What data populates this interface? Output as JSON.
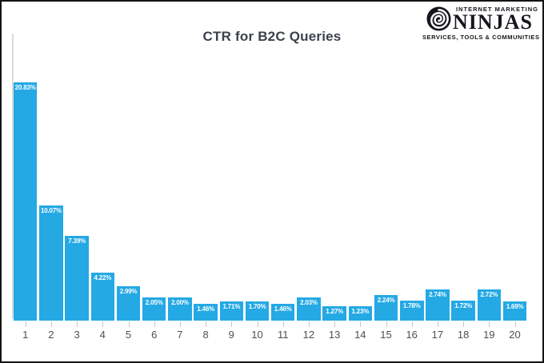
{
  "window": {
    "border_color": "#141414",
    "background": "#ffffff"
  },
  "logo": {
    "line1": "INTERNET MARKETING",
    "name": "NINJAS",
    "line2": "SERVICES, TOOLS & COMMUNITIES",
    "color": "#15151d",
    "icon": "spiral-icon"
  },
  "chart_data": {
    "type": "bar",
    "title": "CTR for B2C Queries",
    "categories": [
      "1",
      "2",
      "3",
      "4",
      "5",
      "6",
      "7",
      "8",
      "9",
      "10",
      "11",
      "12",
      "13",
      "14",
      "15",
      "16",
      "17",
      "18",
      "19",
      "20"
    ],
    "values": [
      20.83,
      10.07,
      7.39,
      4.22,
      2.99,
      2.05,
      2.0,
      1.46,
      1.71,
      1.7,
      1.46,
      2.03,
      1.27,
      1.23,
      2.24,
      1.78,
      2.74,
      1.72,
      2.72,
      1.69
    ],
    "value_labels": [
      "20.83%",
      "10.07%",
      "7.39%",
      "4.22%",
      "2.99%",
      "2.05%",
      "2.00%",
      "1.46%",
      "1.71%",
      "1.70%",
      "1.46%",
      "2.03%",
      "1.27%",
      "1.23%",
      "2.24%",
      "1.78%",
      "2.74%",
      "1.72%",
      "2.72%",
      "1.69%"
    ],
    "xlabel": "",
    "ylabel": "",
    "ylim": [
      0,
      22
    ],
    "grid": false,
    "legend": false,
    "bar_color": "#24a9e4",
    "value_label_color": "#ffffff",
    "title_color": "#3b414d",
    "axis_line_color": "#dcdcdc",
    "tick_color": "#c8c8c8",
    "tick_label_color": "#4f4f4f"
  }
}
